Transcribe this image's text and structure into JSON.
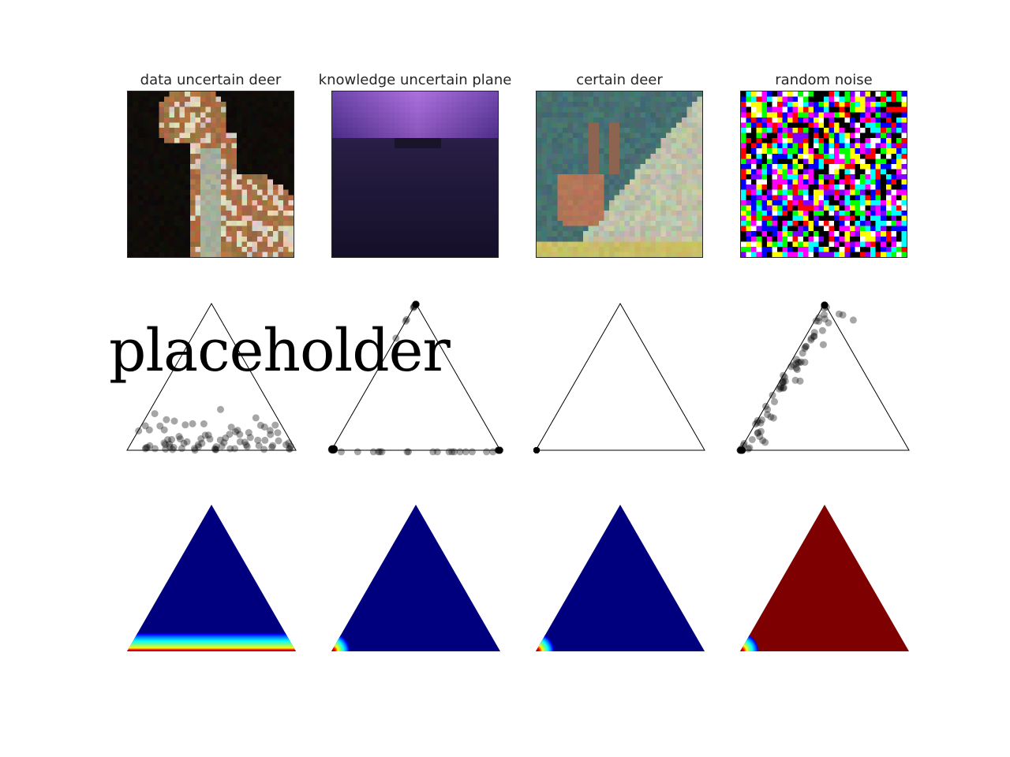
{
  "panels": [
    {
      "title": "data uncertain deer",
      "image": "deer-with-black-background",
      "density": "concentrated-along-bottom-edge"
    },
    {
      "title": "knowledge uncertain plane",
      "image": "purple-sky-plane",
      "density": "concentrated-bottom-left-corner"
    },
    {
      "title": "certain deer",
      "image": "deer-with-antlers-on-hill",
      "density": "concentrated-bottom-left-corner"
    },
    {
      "title": "random noise",
      "image": "random-color-noise",
      "density": "spread-across-triangle"
    }
  ],
  "overlay": {
    "text": "placeholder"
  },
  "colors": {
    "density_low": "#00007f",
    "density_high": "#7f0000",
    "sample_point": "#000000",
    "triangle_edge": "#000000"
  }
}
